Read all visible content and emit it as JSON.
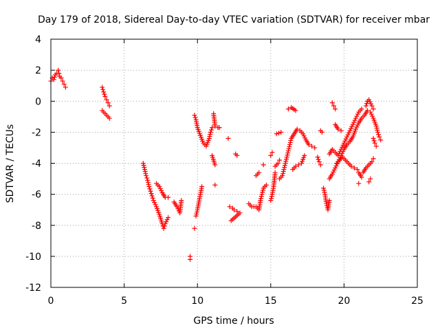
{
  "chart_data": {
    "type": "scatter",
    "title": "Day 179 of 2018, Sidereal Day-to-day VTEC variation (SDTVAR) for receiver mbar",
    "xlabel": "GPS time / hours",
    "ylabel": "SDTVAR / TECUs",
    "xlim": [
      0,
      25
    ],
    "ylim": [
      -12,
      4
    ],
    "xticks": [
      0,
      5,
      10,
      15,
      20,
      25
    ],
    "yticks": [
      4,
      2,
      0,
      -2,
      -4,
      -6,
      -8,
      -10,
      -12
    ],
    "grid": true,
    "marker": "+",
    "series_color": "#ff0000",
    "segments": [
      [
        [
          0.0,
          1.3
        ],
        [
          0.1,
          1.5
        ],
        [
          0.2,
          1.4
        ],
        [
          0.3,
          1.7
        ],
        [
          0.4,
          1.8
        ],
        [
          0.5,
          2.0
        ],
        [
          0.55,
          1.8
        ],
        [
          0.6,
          1.6
        ],
        [
          0.7,
          1.5
        ],
        [
          0.8,
          1.3
        ],
        [
          0.9,
          1.1
        ],
        [
          1.0,
          0.9
        ]
      ],
      [
        [
          3.5,
          0.9
        ],
        [
          3.6,
          0.6
        ],
        [
          3.7,
          0.3
        ],
        [
          3.8,
          0.1
        ],
        [
          3.9,
          -0.1
        ],
        [
          4.0,
          -0.3
        ]
      ],
      [
        [
          3.5,
          -0.6
        ],
        [
          3.7,
          -0.8
        ],
        [
          3.9,
          -1.0
        ],
        [
          4.0,
          -1.1
        ]
      ],
      [
        [
          6.3,
          -4.0
        ],
        [
          6.4,
          -4.4
        ],
        [
          6.5,
          -4.8
        ],
        [
          6.6,
          -5.1
        ],
        [
          6.7,
          -5.5
        ],
        [
          6.8,
          -5.8
        ],
        [
          6.9,
          -6.1
        ],
        [
          7.0,
          -6.4
        ],
        [
          7.2,
          -6.8
        ],
        [
          7.4,
          -7.3
        ],
        [
          7.6,
          -7.9
        ],
        [
          7.7,
          -8.2
        ],
        [
          7.8,
          -7.9
        ],
        [
          8.0,
          -7.5
        ]
      ],
      [
        [
          7.2,
          -5.3
        ],
        [
          7.4,
          -5.5
        ],
        [
          7.6,
          -5.9
        ],
        [
          7.8,
          -6.2
        ],
        [
          8.0,
          -6.2
        ]
      ],
      [
        [
          8.4,
          -6.5
        ],
        [
          8.6,
          -6.8
        ],
        [
          8.8,
          -7.2
        ],
        [
          8.9,
          -6.4
        ]
      ],
      [
        [
          9.5,
          -10.0
        ],
        [
          9.5,
          -10.2
        ]
      ],
      [
        [
          9.8,
          -8.2
        ]
      ],
      [
        [
          9.9,
          -7.4
        ],
        [
          10.0,
          -7.0
        ],
        [
          10.1,
          -6.5
        ],
        [
          10.2,
          -6.0
        ],
        [
          10.3,
          -5.5
        ]
      ],
      [
        [
          9.8,
          -0.9
        ],
        [
          9.9,
          -1.2
        ],
        [
          10.0,
          -1.7
        ],
        [
          10.2,
          -2.2
        ],
        [
          10.4,
          -2.7
        ],
        [
          10.6,
          -2.9
        ],
        [
          10.8,
          -2.4
        ],
        [
          10.9,
          -2.0
        ],
        [
          11.0,
          -1.7
        ]
      ],
      [
        [
          11.1,
          -0.8
        ],
        [
          11.2,
          -1.6
        ],
        [
          11.4,
          -1.7
        ],
        [
          11.5,
          -1.7
        ]
      ],
      [
        [
          11.0,
          -3.5
        ],
        [
          11.2,
          -4.1
        ]
      ],
      [
        [
          11.2,
          -5.4
        ]
      ],
      [
        [
          12.1,
          -2.4
        ]
      ],
      [
        [
          12.2,
          -6.8
        ],
        [
          12.4,
          -6.9
        ],
        [
          12.5,
          -7.0
        ],
        [
          12.7,
          -7.1
        ],
        [
          12.9,
          -7.2
        ],
        [
          12.3,
          -7.7
        ]
      ],
      [
        [
          12.6,
          -3.4
        ],
        [
          12.7,
          -3.5
        ]
      ],
      [
        [
          13.5,
          -6.6
        ],
        [
          13.7,
          -6.8
        ],
        [
          14.0,
          -6.8
        ],
        [
          14.2,
          -7.0
        ],
        [
          14.3,
          -6.4
        ],
        [
          14.4,
          -6.0
        ],
        [
          14.5,
          -5.6
        ],
        [
          14.7,
          -5.4
        ]
      ],
      [
        [
          14.0,
          -4.8
        ],
        [
          14.2,
          -4.6
        ]
      ],
      [
        [
          14.5,
          -4.1
        ]
      ],
      [
        [
          15.0,
          -6.4
        ],
        [
          15.1,
          -6.0
        ],
        [
          15.2,
          -5.5
        ],
        [
          15.3,
          -4.6
        ]
      ],
      [
        [
          15.0,
          -3.5
        ],
        [
          15.1,
          -3.3
        ]
      ],
      [
        [
          15.3,
          -4.2
        ],
        [
          15.5,
          -4.0
        ],
        [
          15.6,
          -3.8
        ]
      ],
      [
        [
          15.4,
          -2.1
        ],
        [
          15.7,
          -2.0
        ]
      ],
      [
        [
          15.6,
          -5.0
        ],
        [
          15.8,
          -4.8
        ],
        [
          15.9,
          -4.4
        ],
        [
          16.0,
          -4.0
        ],
        [
          16.1,
          -3.6
        ],
        [
          16.2,
          -3.2
        ],
        [
          16.3,
          -2.8
        ],
        [
          16.4,
          -2.4
        ],
        [
          16.6,
          -2.1
        ],
        [
          16.8,
          -1.8
        ],
        [
          17.0,
          -1.9
        ],
        [
          17.2,
          -2.1
        ],
        [
          17.4,
          -2.5
        ],
        [
          17.6,
          -2.8
        ],
        [
          17.8,
          -2.9
        ],
        [
          18.0,
          -3.0
        ]
      ],
      [
        [
          16.2,
          -0.5
        ],
        [
          16.4,
          -0.4
        ],
        [
          16.7,
          -0.6
        ]
      ],
      [
        [
          16.5,
          -4.4
        ],
        [
          16.7,
          -4.2
        ],
        [
          16.9,
          -4.1
        ],
        [
          17.1,
          -4.0
        ],
        [
          17.3,
          -3.5
        ]
      ],
      [
        [
          18.2,
          -3.6
        ],
        [
          18.3,
          -3.9
        ],
        [
          18.4,
          -4.1
        ]
      ],
      [
        [
          18.4,
          -1.9
        ],
        [
          18.5,
          -2.0
        ]
      ],
      [
        [
          18.6,
          -5.6
        ],
        [
          18.7,
          -6.0
        ],
        [
          18.8,
          -6.6
        ],
        [
          18.9,
          -7.0
        ],
        [
          19.0,
          -6.4
        ]
      ],
      [
        [
          19.0,
          -3.4
        ],
        [
          19.2,
          -3.1
        ],
        [
          19.4,
          -3.3
        ],
        [
          19.6,
          -3.5
        ],
        [
          19.8,
          -3.1
        ],
        [
          20.0,
          -2.7
        ],
        [
          20.2,
          -2.3
        ],
        [
          20.4,
          -1.9
        ],
        [
          20.6,
          -1.5
        ],
        [
          20.8,
          -1.1
        ],
        [
          21.0,
          -0.7
        ],
        [
          21.2,
          -0.5
        ]
      ],
      [
        [
          19.2,
          -0.1
        ],
        [
          19.3,
          -0.3
        ],
        [
          19.4,
          -0.5
        ]
      ],
      [
        [
          19.0,
          -5.0
        ],
        [
          19.2,
          -4.7
        ],
        [
          19.4,
          -4.3
        ],
        [
          19.6,
          -3.9
        ],
        [
          19.8,
          -3.5
        ],
        [
          20.0,
          -3.1
        ],
        [
          20.2,
          -2.8
        ],
        [
          20.4,
          -2.6
        ],
        [
          20.6,
          -2.3
        ],
        [
          20.8,
          -1.8
        ],
        [
          21.0,
          -1.4
        ],
        [
          21.2,
          -1.1
        ],
        [
          21.4,
          -0.9
        ],
        [
          21.6,
          -0.6
        ],
        [
          21.8,
          -0.7
        ],
        [
          22.0,
          -1.1
        ],
        [
          22.2,
          -1.6
        ],
        [
          22.3,
          -2.0
        ],
        [
          22.4,
          -2.3
        ],
        [
          22.5,
          -2.5
        ]
      ],
      [
        [
          19.5,
          -4.0
        ],
        [
          19.7,
          -3.8
        ],
        [
          19.9,
          -3.6
        ],
        [
          20.1,
          -3.8
        ],
        [
          20.3,
          -4.0
        ],
        [
          20.5,
          -4.2
        ],
        [
          20.7,
          -4.3
        ],
        [
          20.9,
          -4.4
        ],
        [
          21.0,
          -4.6
        ],
        [
          21.2,
          -4.9
        ]
      ],
      [
        [
          19.4,
          -1.5
        ],
        [
          19.6,
          -1.8
        ],
        [
          19.8,
          -1.9
        ]
      ],
      [
        [
          21.3,
          -4.6
        ],
        [
          21.5,
          -4.3
        ],
        [
          21.7,
          -4.1
        ],
        [
          21.9,
          -3.9
        ],
        [
          22.0,
          -3.7
        ]
      ],
      [
        [
          21.7,
          -5.2
        ],
        [
          21.8,
          -5.0
        ]
      ],
      [
        [
          21.5,
          -0.3
        ],
        [
          21.6,
          0.0
        ],
        [
          21.7,
          0.1
        ],
        [
          21.9,
          -0.3
        ],
        [
          22.0,
          -0.5
        ]
      ],
      [
        [
          22.0,
          -2.4
        ],
        [
          22.1,
          -2.7
        ],
        [
          22.2,
          -2.9
        ]
      ],
      [
        [
          21.0,
          -5.3
        ]
      ]
    ]
  }
}
